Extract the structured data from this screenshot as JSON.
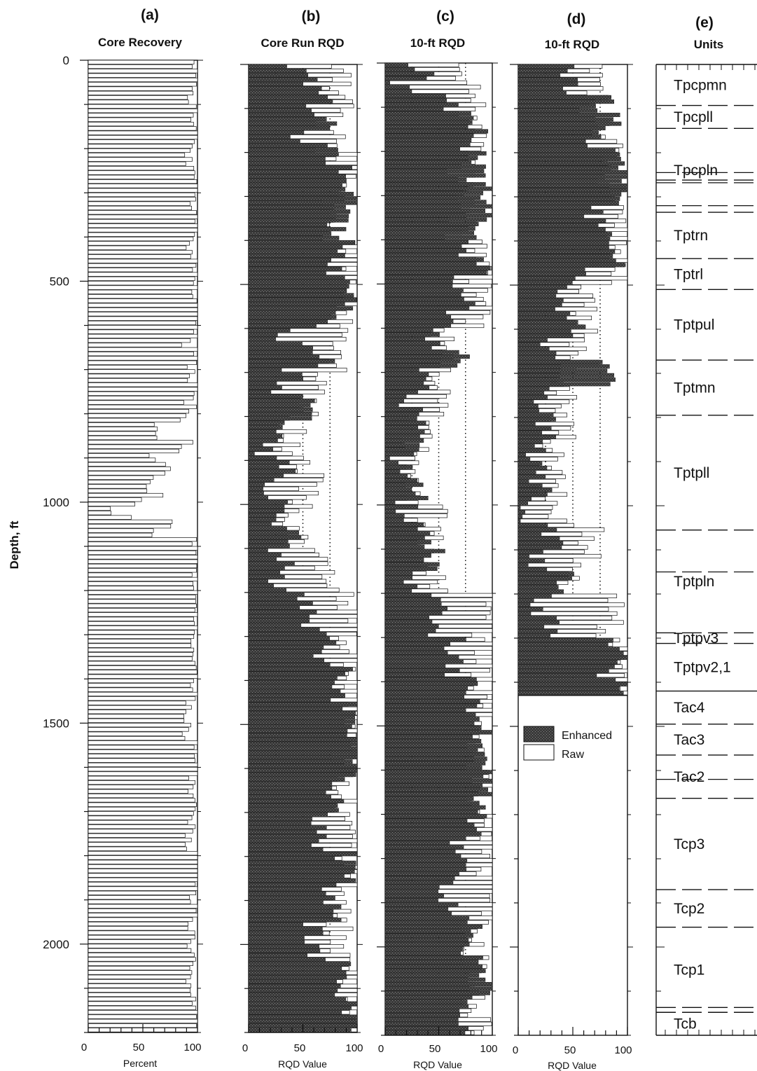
{
  "panels": [
    {
      "letter": "(a)",
      "title": "Core Recovery",
      "xlabel": "Percent"
    },
    {
      "letter": "(b)",
      "title": "Core Run RQD",
      "xlabel": "RQD Value"
    },
    {
      "letter": "(c)",
      "title": "10-ft RQD",
      "xlabel": "RQD Value"
    },
    {
      "letter": "(d)",
      "title": "10-ft RQD",
      "xlabel": "RQD Value"
    },
    {
      "letter": "(e)",
      "title": "Units",
      "xlabel": ""
    }
  ],
  "ylabel": "Depth, ft",
  "depth_ticks": [
    "0",
    "500",
    "1000",
    "1500",
    "2000"
  ],
  "x_ticks": [
    "0",
    "50",
    "100"
  ],
  "legend": {
    "enhanced": "Enhanced",
    "raw": "Raw"
  },
  "colors": {
    "enhanced": "#3c3c3c",
    "raw": "#ffffff",
    "outline": "#111111"
  },
  "chart_data": [
    {
      "type": "bar",
      "orientation": "horizontal",
      "panel": "a",
      "title": "Core Recovery",
      "xlabel": "Percent",
      "ylabel": "Depth, ft",
      "xlim": [
        0,
        100
      ],
      "ylim": [
        2200,
        0
      ],
      "y_step": 10,
      "series": [
        {
          "name": "Core Recovery",
          "segments": [
            {
              "from": 0,
              "to": 600,
              "values": [
                100,
                95,
                98,
                100,
                92,
                100,
                97,
                100,
                94,
                100,
                98,
                100
              ]
            },
            {
              "from": 600,
              "to": 800,
              "values": [
                98,
                90,
                100,
                95,
                93,
                100,
                92,
                97
              ]
            },
            {
              "from": 800,
              "to": 1040,
              "values": [
                85,
                65,
                60,
                95,
                85,
                60,
                70,
                75,
                60,
                50,
                65,
                45,
                25,
                40
              ]
            },
            {
              "from": 1040,
              "to": 1200,
              "values": [
                75,
                60,
                100,
                98,
                100,
                95,
                100,
                97
              ]
            },
            {
              "from": 1200,
              "to": 2200,
              "values": [
                100,
                95,
                98,
                90,
                100,
                96,
                93,
                100,
                97,
                95,
                92,
                100
              ]
            }
          ]
        }
      ]
    },
    {
      "type": "bar",
      "orientation": "horizontal",
      "panel": "b",
      "title": "Core Run RQD",
      "xlabel": "RQD Value",
      "ylabel": "Depth, ft",
      "xlim": [
        0,
        100
      ],
      "ylim": [
        2200,
        0
      ],
      "y_step": 10,
      "gridlines": [
        25,
        50,
        75
      ],
      "series": [
        {
          "name": "Enhanced",
          "segments": [
            {
              "from": 0,
              "to": 230,
              "values": [
                45,
                60,
                70,
                55,
                80,
                40,
                75,
                60
              ]
            },
            {
              "from": 230,
              "to": 600,
              "values": [
                85,
                95,
                100,
                80,
                90,
                75,
                85,
                95,
                70
              ]
            },
            {
              "from": 600,
              "to": 780,
              "values": [
                30,
                50,
                70,
                40,
                25,
                55
              ]
            },
            {
              "from": 780,
              "to": 1020,
              "values": [
                50,
                30,
                20,
                15,
                35,
                25,
                10,
                30
              ]
            },
            {
              "from": 1020,
              "to": 1200,
              "values": [
                30,
                45,
                20,
                35,
                25
              ]
            },
            {
              "from": 1200,
              "to": 2200,
              "values": [
                55,
                70,
                85,
                95,
                100,
                80,
                65,
                90,
                75,
                60,
                85,
                95
              ]
            }
          ]
        },
        {
          "name": "Raw",
          "segments": [
            {
              "from": 0,
              "to": 600,
              "values": [
                85,
                75,
                95,
                80,
                100,
                90
              ]
            },
            {
              "from": 600,
              "to": 1200,
              "values": [
                80,
                60,
                40,
                55,
                45,
                70
              ]
            },
            {
              "from": 1200,
              "to": 2200,
              "values": [
                95,
                100,
                90,
                98,
                85,
                100
              ]
            }
          ]
        }
      ]
    },
    {
      "type": "bar",
      "orientation": "horizontal",
      "panel": "c",
      "title": "10-ft RQD",
      "xlabel": "RQD Value",
      "ylabel": "Depth, ft",
      "xlim": [
        0,
        100
      ],
      "ylim": [
        2200,
        0
      ],
      "y_step": 10,
      "gridlines": [
        25,
        50,
        75
      ],
      "series": [
        {
          "name": "Enhanced",
          "segments": [
            {
              "from": 0,
              "to": 70,
              "values": [
                25,
                35,
                15,
                30
              ]
            },
            {
              "from": 70,
              "to": 230,
              "values": [
                60,
                75,
                85,
                70,
                90
              ]
            },
            {
              "from": 230,
              "to": 600,
              "values": [
                85,
                95,
                100,
                80,
                75,
                90,
                70,
                80,
                60
              ]
            },
            {
              "from": 600,
              "to": 780,
              "values": [
                45,
                70,
                35,
                20
              ]
            },
            {
              "from": 780,
              "to": 1040,
              "values": [
                40,
                25,
                15,
                30,
                20
              ]
            },
            {
              "from": 1040,
              "to": 1200,
              "values": [
                35,
                45,
                20
              ]
            },
            {
              "from": 1200,
              "to": 2200,
              "values": [
                50,
                65,
                80,
                90,
                100,
                85,
                70,
                60,
                80,
                95,
                75
              ]
            }
          ]
        },
        {
          "name": "Raw",
          "segments": [
            {
              "from": 0,
              "to": 600,
              "values": [
                80,
                70,
                90
              ]
            },
            {
              "from": 600,
              "to": 1200,
              "values": [
                50,
                30,
                45
              ]
            },
            {
              "from": 1200,
              "to": 2200,
              "values": [
                95,
                90,
                100,
                85
              ]
            }
          ]
        }
      ]
    },
    {
      "type": "bar",
      "orientation": "horizontal",
      "panel": "d",
      "title": "10-ft RQD",
      "xlabel": "RQD Value",
      "ylabel": "Depth, ft",
      "xlim": [
        0,
        100
      ],
      "ylim": [
        2200,
        0
      ],
      "y_step": 10,
      "bars_to_depth": 1430,
      "gridlines": [
        25,
        50,
        75
      ],
      "legend_position": "lower-middle",
      "series": [
        {
          "name": "Enhanced",
          "segments": [
            {
              "from": 0,
              "to": 70,
              "values": [
                45,
                55,
                35
              ]
            },
            {
              "from": 70,
              "to": 220,
              "values": [
                80,
                85,
                70,
                90
              ]
            },
            {
              "from": 220,
              "to": 320,
              "values": [
                95,
                100,
                85
              ]
            },
            {
              "from": 320,
              "to": 500,
              "values": [
                70,
                85,
                90,
                60
              ]
            },
            {
              "from": 500,
              "to": 780,
              "values": [
                40,
                55,
                30,
                80,
                25
              ]
            },
            {
              "from": 780,
              "to": 1040,
              "values": [
                25,
                15,
                20,
                10
              ]
            },
            {
              "from": 1040,
              "to": 1200,
              "values": [
                30,
                20,
                45
              ]
            },
            {
              "from": 1200,
              "to": 1300,
              "values": [
                20,
                30
              ]
            },
            {
              "from": 1300,
              "to": 1430,
              "values": [
                90,
                95,
                80,
                100
              ]
            }
          ]
        },
        {
          "name": "Raw",
          "segments": [
            {
              "from": 0,
              "to": 500,
              "values": [
                70,
                85,
                95
              ]
            },
            {
              "from": 500,
              "to": 1040,
              "values": [
                60,
                40,
                30
              ]
            },
            {
              "from": 1040,
              "to": 1200,
              "values": [
                65,
                50
              ]
            },
            {
              "from": 1200,
              "to": 1430,
              "values": [
                85,
                100
              ]
            }
          ]
        }
      ]
    },
    {
      "type": "table",
      "panel": "e",
      "title": "Units",
      "units": [
        {
          "name": "Tpcpmn",
          "top": 0,
          "base": 93
        },
        {
          "name": "Tpcpll",
          "top": 93,
          "base": 145
        },
        {
          "name": "Tpcpln",
          "top": 145,
          "base": 335
        },
        {
          "name": "Tptrn",
          "top": 335,
          "base": 440
        },
        {
          "name": "Tptrl",
          "top": 440,
          "base": 510
        },
        {
          "name": "Tptpul",
          "top": 510,
          "base": 670
        },
        {
          "name": "Tptmn",
          "top": 670,
          "base": 795
        },
        {
          "name": "Tptpll",
          "top": 795,
          "base": 1055
        },
        {
          "name": "Tptpln",
          "top": 1055,
          "base": 1288
        },
        {
          "name": "Tptpv3",
          "top": 1288,
          "base": 1312
        },
        {
          "name": "Tptpv2,1",
          "top": 1312,
          "base": 1420
        },
        {
          "name": "Tac4",
          "top": 1420,
          "base": 1495
        },
        {
          "name": "Tac3",
          "top": 1495,
          "base": 1565
        },
        {
          "name": "Tac2",
          "top": 1565,
          "base": 1663
        },
        {
          "name": "Tcp3",
          "top": 1663,
          "base": 1870
        },
        {
          "name": "Tcp2",
          "top": 1870,
          "base": 1955
        },
        {
          "name": "Tcp1",
          "top": 1955,
          "base": 2148
        },
        {
          "name": "Tcb",
          "top": 2148,
          "base": 2200
        }
      ],
      "extra_dashed_boundaries": [
        245,
        262,
        268,
        320,
        1150,
        1620,
        2137
      ]
    }
  ]
}
